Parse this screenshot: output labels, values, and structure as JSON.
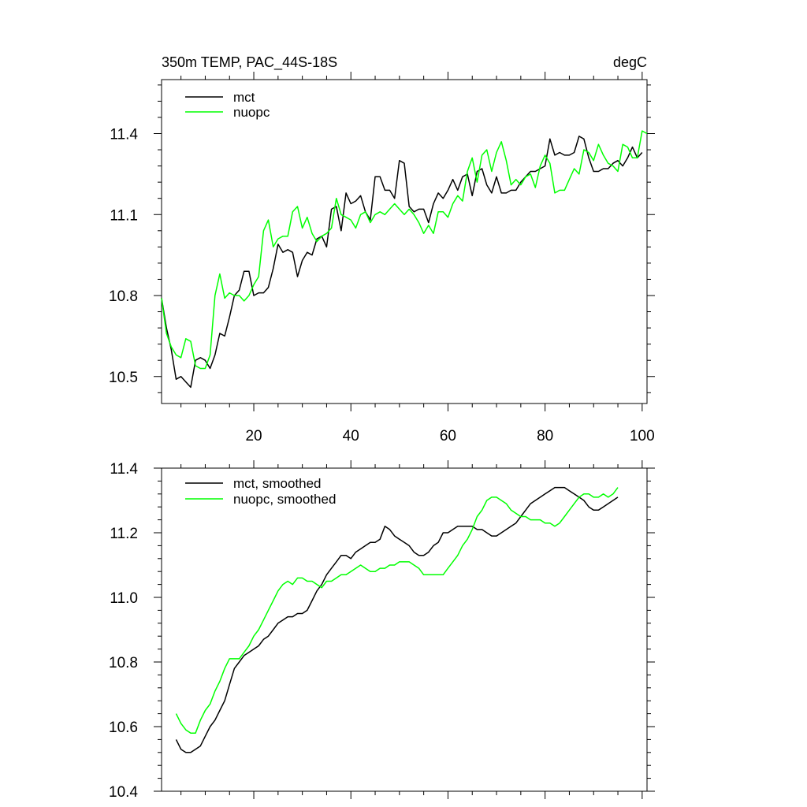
{
  "chart_data": [
    {
      "type": "line",
      "title": "350m TEMP, PAC_44S-18S",
      "units": "degC",
      "xlim": [
        1,
        101
      ],
      "ylim": [
        10.4,
        11.6
      ],
      "xticks": [
        20,
        40,
        60,
        80,
        100
      ],
      "xtick_labels": [
        "20",
        "40",
        "60",
        "80",
        "100"
      ],
      "yticks": [
        10.5,
        10.8,
        11.1,
        11.4
      ],
      "ytick_labels": [
        "10.5",
        "10.8",
        "11.1",
        "11.4"
      ],
      "legend_location": "top-left",
      "series": [
        {
          "name": "mct",
          "color": "#000000",
          "x_start": 1,
          "values": [
            10.79,
            10.68,
            10.6,
            10.49,
            10.5,
            10.48,
            10.46,
            10.56,
            10.57,
            10.56,
            10.53,
            10.58,
            10.66,
            10.65,
            10.72,
            10.8,
            10.82,
            10.89,
            10.89,
            10.8,
            10.81,
            10.81,
            10.83,
            10.9,
            10.99,
            10.96,
            10.97,
            10.96,
            10.87,
            10.93,
            10.96,
            10.95,
            11.01,
            11.02,
            10.98,
            11.12,
            11.13,
            11.04,
            11.18,
            11.14,
            11.15,
            11.17,
            11.11,
            11.08,
            11.24,
            11.24,
            11.19,
            11.19,
            11.16,
            11.3,
            11.29,
            11.13,
            11.11,
            11.12,
            11.12,
            11.07,
            11.14,
            11.18,
            11.16,
            11.19,
            11.23,
            11.19,
            11.24,
            11.25,
            11.17,
            11.26,
            11.27,
            11.21,
            11.18,
            11.24,
            11.18,
            11.18,
            11.19,
            11.19,
            11.22,
            11.24,
            11.26,
            11.26,
            11.27,
            11.28,
            11.38,
            11.32,
            11.33,
            11.32,
            11.32,
            11.33,
            11.39,
            11.38,
            11.31,
            11.26,
            11.26,
            11.27,
            11.27,
            11.29,
            11.3,
            11.28,
            11.31,
            11.35,
            11.31,
            11.33
          ]
        },
        {
          "name": "nuopc",
          "color": "#00ff00",
          "x_start": 1,
          "values": [
            10.79,
            10.66,
            10.61,
            10.58,
            10.57,
            10.64,
            10.63,
            10.54,
            10.53,
            10.53,
            10.58,
            10.8,
            10.88,
            10.79,
            10.81,
            10.8,
            10.8,
            10.78,
            10.8,
            10.84,
            10.87,
            11.04,
            11.08,
            10.98,
            11.01,
            11.02,
            11.02,
            11.11,
            11.13,
            11.05,
            11.09,
            11.03,
            11.0,
            11.02,
            11.03,
            11.05,
            11.16,
            11.1,
            11.09,
            11.08,
            11.05,
            11.1,
            11.11,
            11.07,
            11.1,
            11.11,
            11.1,
            11.12,
            11.14,
            11.12,
            11.1,
            11.12,
            11.1,
            11.07,
            11.03,
            11.06,
            11.03,
            11.11,
            11.11,
            11.09,
            11.14,
            11.17,
            11.15,
            11.26,
            11.31,
            11.22,
            11.32,
            11.34,
            11.26,
            11.33,
            11.37,
            11.3,
            11.21,
            11.23,
            11.21,
            11.24,
            11.25,
            11.2,
            11.28,
            11.32,
            11.29,
            11.18,
            11.19,
            11.19,
            11.23,
            11.27,
            11.25,
            11.34,
            11.33,
            11.3,
            11.36,
            11.32,
            11.29,
            11.28,
            11.26,
            11.36,
            11.35,
            11.31,
            11.31,
            11.41,
            11.4
          ]
        }
      ]
    },
    {
      "type": "line",
      "title": "",
      "xlim": [
        1,
        101
      ],
      "ylim": [
        10.4,
        11.4
      ],
      "yticks": [
        10.4,
        10.6,
        10.8,
        11.0,
        11.2,
        11.4
      ],
      "ytick_labels": [
        "10.4",
        "10.6",
        "10.8",
        "11.0",
        "11.2",
        "11.4"
      ],
      "legend_location": "top-left",
      "series": [
        {
          "name": "mct, smoothed",
          "color": "#000000",
          "x_start": 4,
          "values": [
            10.56,
            10.53,
            10.52,
            10.52,
            10.53,
            10.54,
            10.57,
            10.6,
            10.62,
            10.65,
            10.68,
            10.73,
            10.78,
            10.8,
            10.82,
            10.83,
            10.84,
            10.85,
            10.87,
            10.88,
            10.9,
            10.92,
            10.93,
            10.94,
            10.94,
            10.95,
            10.95,
            10.96,
            10.99,
            11.02,
            11.04,
            11.07,
            11.09,
            11.11,
            11.13,
            11.13,
            11.12,
            11.14,
            11.15,
            11.16,
            11.17,
            11.17,
            11.18,
            11.22,
            11.21,
            11.19,
            11.18,
            11.17,
            11.16,
            11.14,
            11.13,
            11.13,
            11.14,
            11.16,
            11.17,
            11.2,
            11.2,
            11.21,
            11.22,
            11.22,
            11.22,
            11.22,
            11.21,
            11.21,
            11.2,
            11.19,
            11.19,
            11.2,
            11.21,
            11.22,
            11.23,
            11.25,
            11.27,
            11.29,
            11.3,
            11.31,
            11.32,
            11.33,
            11.34,
            11.34,
            11.34,
            11.33,
            11.32,
            11.31,
            11.3,
            11.28,
            11.27,
            11.27,
            11.28,
            11.29,
            11.3,
            11.31
          ]
        },
        {
          "name": "nuopc, smoothed",
          "color": "#00ff00",
          "x_start": 4,
          "values": [
            10.64,
            10.61,
            10.59,
            10.58,
            10.58,
            10.62,
            10.65,
            10.67,
            10.71,
            10.74,
            10.78,
            10.81,
            10.81,
            10.81,
            10.83,
            10.85,
            10.88,
            10.9,
            10.93,
            10.96,
            10.99,
            11.02,
            11.04,
            11.05,
            11.04,
            11.06,
            11.06,
            11.05,
            11.05,
            11.04,
            11.03,
            11.05,
            11.05,
            11.06,
            11.07,
            11.07,
            11.08,
            11.09,
            11.1,
            11.09,
            11.08,
            11.08,
            11.09,
            11.09,
            11.1,
            11.1,
            11.11,
            11.11,
            11.11,
            11.1,
            11.09,
            11.07,
            11.07,
            11.07,
            11.07,
            11.07,
            11.09,
            11.11,
            11.13,
            11.16,
            11.18,
            11.21,
            11.25,
            11.27,
            11.3,
            11.31,
            11.31,
            11.3,
            11.29,
            11.27,
            11.26,
            11.25,
            11.25,
            11.24,
            11.24,
            11.24,
            11.23,
            11.23,
            11.22,
            11.23,
            11.25,
            11.27,
            11.29,
            11.31,
            11.32,
            11.32,
            11.31,
            11.31,
            11.32,
            11.31,
            11.32,
            11.34
          ]
        }
      ]
    }
  ]
}
